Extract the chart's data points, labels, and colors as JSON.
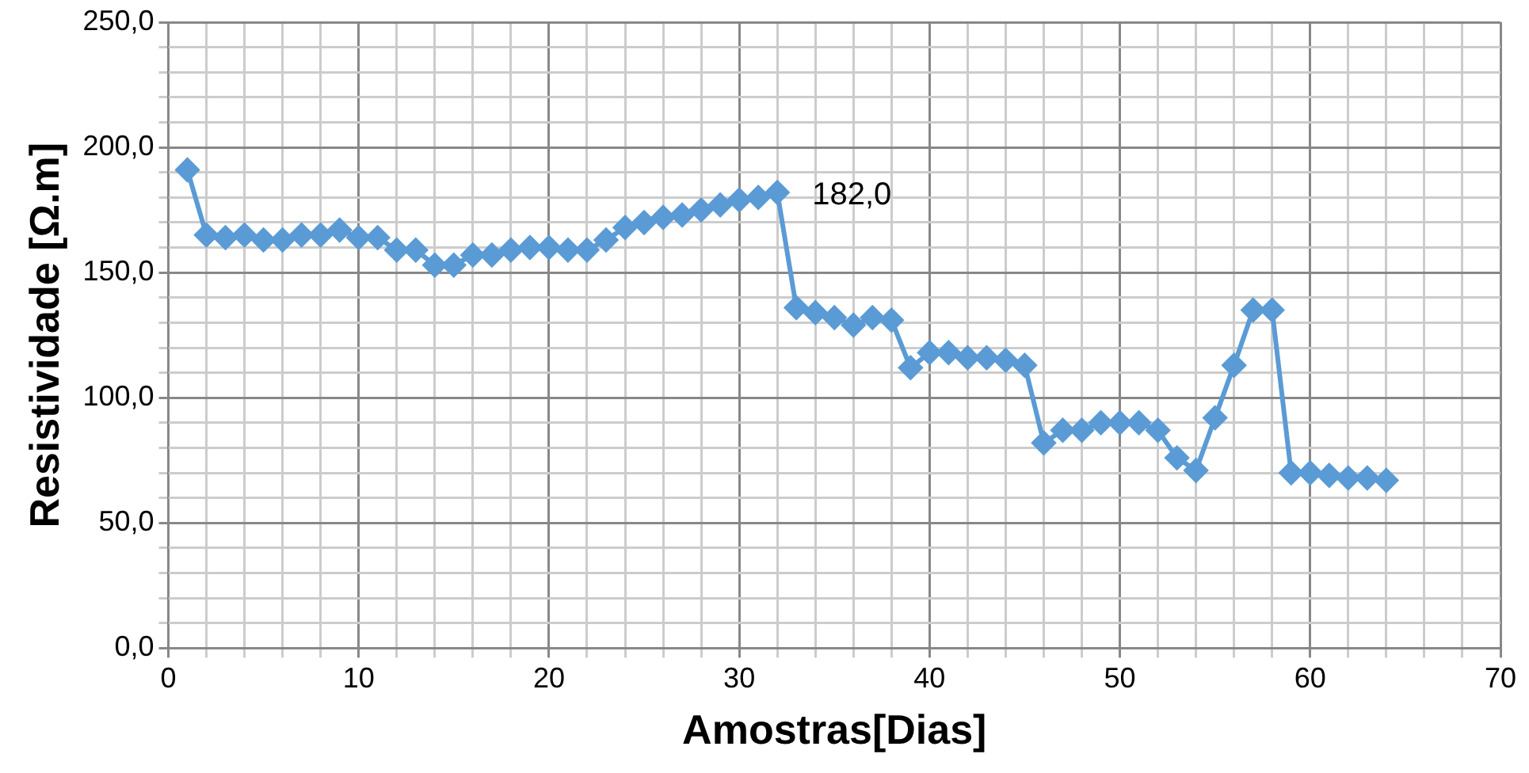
{
  "chart_data": {
    "type": "line",
    "xlabel": "Amostras[Dias]",
    "ylabel": "Resistividade [Ω.m]",
    "x": [
      1,
      2,
      3,
      4,
      5,
      6,
      7,
      8,
      9,
      10,
      11,
      12,
      13,
      14,
      15,
      16,
      17,
      18,
      19,
      20,
      21,
      22,
      23,
      24,
      25,
      26,
      27,
      28,
      29,
      30,
      31,
      32,
      33,
      34,
      35,
      36,
      37,
      38,
      39,
      40,
      41,
      42,
      43,
      44,
      45,
      46,
      47,
      48,
      49,
      50,
      51,
      52,
      53,
      54,
      55,
      56,
      57,
      58,
      59,
      60,
      61,
      62,
      63,
      64
    ],
    "series": [
      {
        "color": "#5b9bd5",
        "values": [
          191,
          165,
          164,
          165,
          163,
          163,
          165,
          165,
          167,
          164,
          164,
          159,
          159,
          153,
          153,
          157,
          157,
          159,
          160,
          160,
          159,
          159,
          163,
          168,
          170,
          172,
          173,
          175,
          177,
          179,
          180,
          182,
          136,
          134,
          132,
          129,
          132,
          131,
          112,
          118,
          118,
          116,
          116,
          115,
          113,
          82,
          87,
          87,
          90,
          90,
          90,
          87,
          76,
          71,
          92,
          113,
          135,
          135,
          70,
          70,
          69,
          68,
          68,
          67
        ]
      }
    ],
    "xlim": [
      0,
      70
    ],
    "xticks": [
      0,
      10,
      20,
      30,
      40,
      50,
      60,
      70
    ],
    "ylim": [
      0,
      250
    ],
    "yticks": [
      {
        "value": 0,
        "label": "0,0"
      },
      {
        "value": 50,
        "label": "50,0"
      },
      {
        "value": 100,
        "label": "100,0"
      },
      {
        "value": 150,
        "label": "150,0"
      },
      {
        "value": 200,
        "label": "200,0"
      },
      {
        "value": 250,
        "label": "250,0"
      }
    ],
    "annotations": [
      {
        "text": "182,0",
        "x": 32,
        "y": 182
      }
    ],
    "grid": true,
    "legend": false,
    "marker": "diamond",
    "line_style": "solid"
  }
}
